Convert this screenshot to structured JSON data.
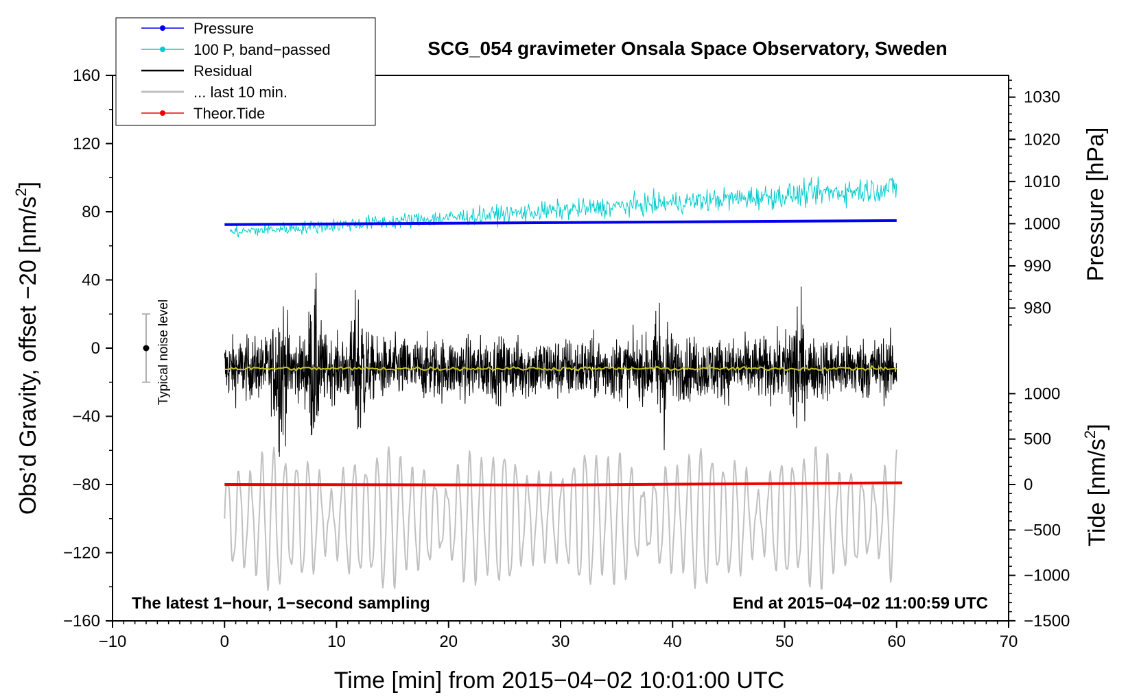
{
  "chart_data": {
    "type": "line",
    "title": "SCG_054 gravimeter Onsala Space Observatory, Sweden",
    "xlabel": "Time [min] from 2015−04−02 10:01:00 UTC",
    "ylabel_left_pre": "Obs’d Gravity, offset −20 [nm/s",
    "ylabel_left_sup": "2",
    "ylabel_left_post": "]",
    "ylabel_pressure": "Pressure [hPa]",
    "ylabel_tide_pre": "Tide [nm/s",
    "ylabel_tide_sup": "2",
    "ylabel_tide_post": "]",
    "xlim": [
      -10,
      70
    ],
    "ylim": [
      -160,
      160
    ],
    "x_ticks": [
      -10,
      0,
      10,
      20,
      30,
      40,
      50,
      60,
      70
    ],
    "x_tick_labels": [
      "−10",
      "0",
      "10",
      "20",
      "30",
      "40",
      "50",
      "60",
      "70"
    ],
    "y_ticks": [
      -160,
      -120,
      -80,
      -40,
      0,
      40,
      80,
      120,
      160
    ],
    "y_tick_labels": [
      "−160",
      "−120",
      "−80",
      "−40",
      "0",
      "40",
      "80",
      "120",
      "160"
    ],
    "pressure_ticks": [
      980,
      990,
      1000,
      1010,
      1020,
      1030
    ],
    "pressure_tick_labels": [
      "980",
      "990",
      "1000",
      "1010",
      "1020",
      "1030"
    ],
    "pressure_axis_map": {
      "hpa_at_y0": 1000,
      "y_per_hpa": 2.475
    },
    "tide_ticks": [
      -1500,
      -1000,
      -500,
      0,
      500,
      1000
    ],
    "tide_tick_labels": [
      "−1500",
      "−1000",
      "−500",
      "0",
      "500",
      "1000"
    ],
    "tide_axis_map": {
      "nms2_at_y0": 0,
      "y_per_nms2": 0.0533
    },
    "legend": [
      {
        "label": "Pressure",
        "color": "#0000ee",
        "marker": true
      },
      {
        "label": "100 P, band−passed",
        "color": "#00cccc",
        "marker": true
      },
      {
        "label": "Residual",
        "color": "#000000",
        "marker": false
      },
      {
        "label": "... last 10 min.",
        "color": "#c0c0c0",
        "marker": false
      },
      {
        "label": "Theor.Tide",
        "color": "#ee0000",
        "marker": true
      }
    ],
    "annotation_left": "The latest 1−hour, 1−second sampling",
    "annotation_right": "End at 2015−04−02 11:00:59 UTC",
    "noise_level": {
      "label": "Typical noise level",
      "x": -7,
      "center": 0,
      "halfwidth": 20
    },
    "series": [
      {
        "name": "Pressure",
        "color": "#0000ee",
        "x_range": [
          0,
          60
        ],
        "start": 72.5,
        "end": 74.8
      },
      {
        "name": "100 P, band−passed",
        "color": "#00cccc",
        "x_range": [
          0.5,
          60
        ],
        "start": 68,
        "end": 94,
        "noise_amplitude": 4
      },
      {
        "name": "Residual",
        "color": "#000000",
        "x_range": [
          0,
          60
        ],
        "mean": -12,
        "noise_amplitude": 18,
        "min": -65,
        "max": 55
      },
      {
        "name": "Residual smoothed",
        "color": "#c8c820",
        "x_range": [
          0,
          60
        ],
        "mean": -12
      },
      {
        "name": "... last 10 min.",
        "color": "#c0c0c0",
        "x_range": [
          0,
          60
        ],
        "mean": -100,
        "amplitude_range": [
          -143,
          -58
        ]
      },
      {
        "name": "Theor.Tide",
        "color": "#ee0000",
        "x_range": [
          0,
          60.5
        ],
        "start": -80,
        "end": -79
      }
    ]
  }
}
